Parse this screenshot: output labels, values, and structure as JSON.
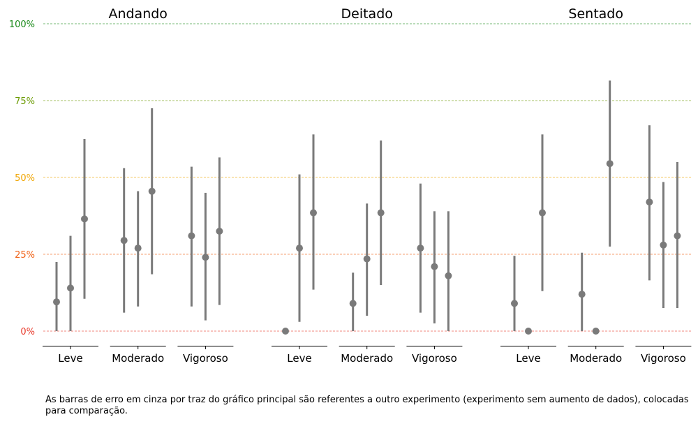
{
  "chart_data": {
    "type": "errorbar",
    "groups": [
      "Andando",
      "Deitado",
      "Sentado"
    ],
    "categories": [
      "Leve",
      "Moderado",
      "Vigoroso"
    ],
    "ylim": [
      0,
      100
    ],
    "grid": true,
    "y_ticks": [
      {
        "value": 0,
        "label": "0%",
        "color": "#e8392a"
      },
      {
        "value": 25,
        "label": "25%",
        "color": "#f06014"
      },
      {
        "value": 50,
        "label": "50%",
        "color": "#f0a500"
      },
      {
        "value": 75,
        "label": "75%",
        "color": "#6a9a00"
      },
      {
        "value": 100,
        "label": "100%",
        "color": "#1a8a1a"
      }
    ],
    "series_color": "#7a7a7a",
    "points": [
      {
        "group": "Andando",
        "category": "Leve",
        "offset": -1,
        "y": 9.5,
        "lo": 0,
        "hi": 22.5
      },
      {
        "group": "Andando",
        "category": "Leve",
        "offset": 0,
        "y": 14,
        "lo": 0,
        "hi": 31
      },
      {
        "group": "Andando",
        "category": "Leve",
        "offset": 1,
        "y": 36.5,
        "lo": 10.5,
        "hi": 62.5
      },
      {
        "group": "Andando",
        "category": "Moderado",
        "offset": -1,
        "y": 29.5,
        "lo": 6,
        "hi": 53
      },
      {
        "group": "Andando",
        "category": "Moderado",
        "offset": 0,
        "y": 27,
        "lo": 8,
        "hi": 45.5
      },
      {
        "group": "Andando",
        "category": "Moderado",
        "offset": 1,
        "y": 45.5,
        "lo": 18.5,
        "hi": 72.5
      },
      {
        "group": "Andando",
        "category": "Vigoroso",
        "offset": -1,
        "y": 31,
        "lo": 8,
        "hi": 53.5
      },
      {
        "group": "Andando",
        "category": "Vigoroso",
        "offset": 0,
        "y": 24,
        "lo": 3.5,
        "hi": 45
      },
      {
        "group": "Andando",
        "category": "Vigoroso",
        "offset": 1,
        "y": 32.5,
        "lo": 8.5,
        "hi": 56.5
      },
      {
        "group": "Deitado",
        "category": "Leve",
        "offset": -1,
        "y": 0,
        "lo": 0,
        "hi": 0
      },
      {
        "group": "Deitado",
        "category": "Leve",
        "offset": 0,
        "y": 27,
        "lo": 3,
        "hi": 51
      },
      {
        "group": "Deitado",
        "category": "Leve",
        "offset": 1,
        "y": 38.5,
        "lo": 13.5,
        "hi": 64
      },
      {
        "group": "Deitado",
        "category": "Moderado",
        "offset": -1,
        "y": 9,
        "lo": 0,
        "hi": 19
      },
      {
        "group": "Deitado",
        "category": "Moderado",
        "offset": 0,
        "y": 23.5,
        "lo": 5,
        "hi": 41.5
      },
      {
        "group": "Deitado",
        "category": "Moderado",
        "offset": 1,
        "y": 38.5,
        "lo": 15,
        "hi": 62
      },
      {
        "group": "Deitado",
        "category": "Vigoroso",
        "offset": -1,
        "y": 27,
        "lo": 6,
        "hi": 48
      },
      {
        "group": "Deitado",
        "category": "Vigoroso",
        "offset": 0,
        "y": 21,
        "lo": 2.5,
        "hi": 39
      },
      {
        "group": "Deitado",
        "category": "Vigoroso",
        "offset": 1,
        "y": 18,
        "lo": 0,
        "hi": 39
      },
      {
        "group": "Sentado",
        "category": "Leve",
        "offset": -1,
        "y": 9,
        "lo": 0,
        "hi": 24.5
      },
      {
        "group": "Sentado",
        "category": "Leve",
        "offset": 0,
        "y": 0,
        "lo": 0,
        "hi": 0
      },
      {
        "group": "Sentado",
        "category": "Leve",
        "offset": 1,
        "y": 38.5,
        "lo": 13,
        "hi": 64
      },
      {
        "group": "Sentado",
        "category": "Moderado",
        "offset": -1,
        "y": 12,
        "lo": 0,
        "hi": 25.5
      },
      {
        "group": "Sentado",
        "category": "Moderado",
        "offset": 0,
        "y": 0,
        "lo": 0,
        "hi": 0
      },
      {
        "group": "Sentado",
        "category": "Moderado",
        "offset": 1,
        "y": 54.5,
        "lo": 27.5,
        "hi": 81.5
      },
      {
        "group": "Sentado",
        "category": "Vigoroso",
        "offset": -1,
        "y": 42,
        "lo": 16.5,
        "hi": 67
      },
      {
        "group": "Sentado",
        "category": "Vigoroso",
        "offset": 0,
        "y": 28,
        "lo": 7.5,
        "hi": 48.5
      },
      {
        "group": "Sentado",
        "category": "Vigoroso",
        "offset": 1,
        "y": 31,
        "lo": 7.5,
        "hi": 55
      }
    ],
    "caption": "As barras de erro em cinza por traz do gráfico principal são referentes a outro experimento (experimento sem aumento de dados), colocadas\npara comparação."
  }
}
